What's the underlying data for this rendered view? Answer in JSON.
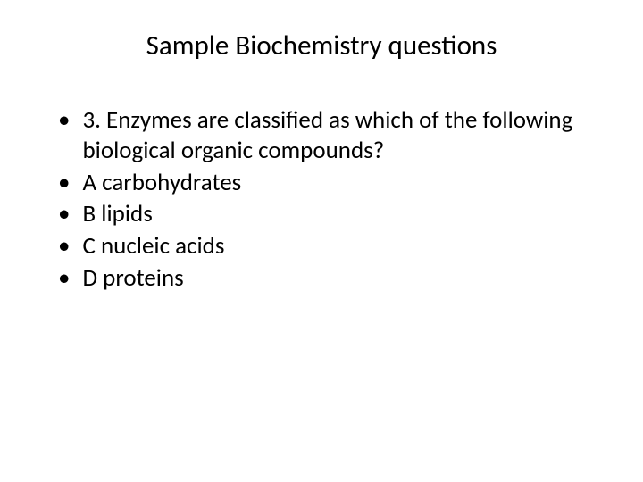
{
  "slide": {
    "title": "Sample Biochemistry questions",
    "title_fontsize": 31,
    "body_fontsize": 27,
    "background_color": "#ffffff",
    "text_color": "#000000",
    "bullet_char": "•",
    "items": [
      {
        "text": "3. Enzymes are classified as which of the following biological organic compounds?"
      },
      {
        "text": "A carbohydrates"
      },
      {
        "text": "B lipids"
      },
      {
        "text": "C nucleic acids"
      },
      {
        "text": "D proteins"
      }
    ]
  }
}
